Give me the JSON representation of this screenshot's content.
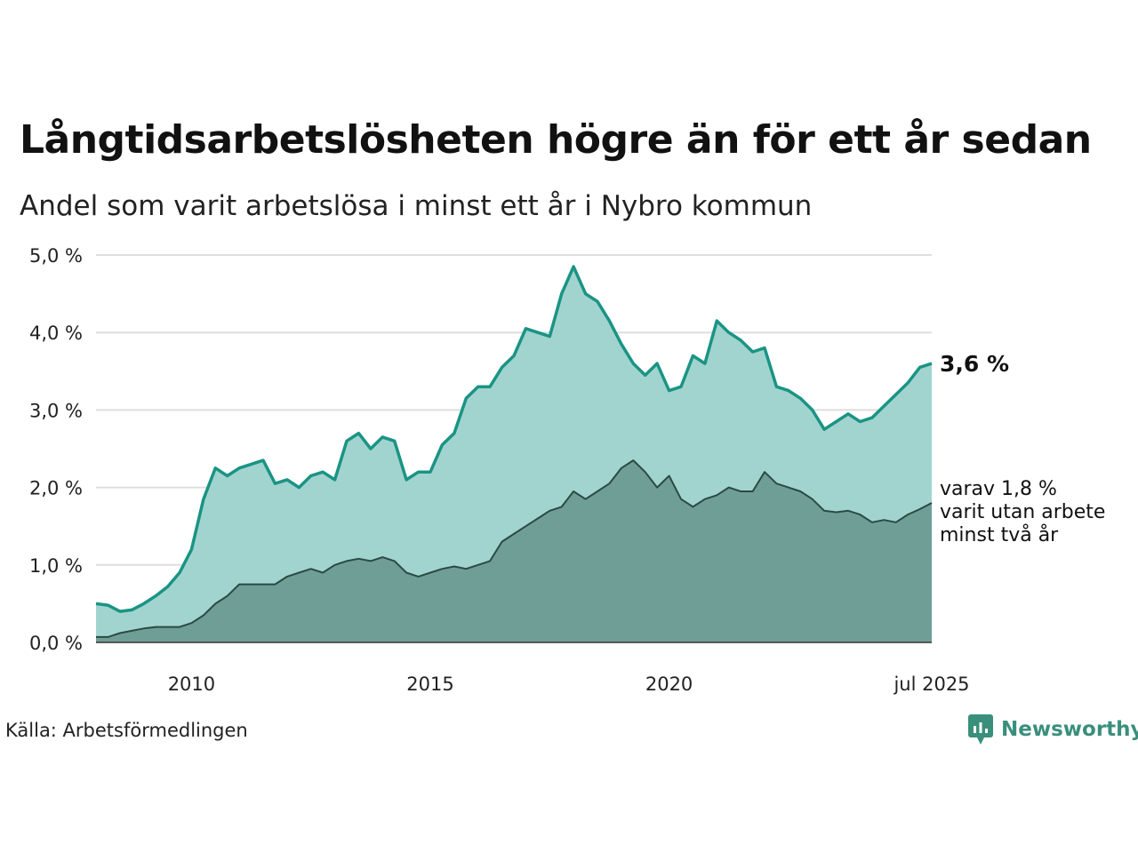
{
  "title": "Långtidsarbetslösheten högre än för ett år sedan",
  "subtitle": "Andel som varit arbetslösa i minst ett år i Nybro kommun",
  "source": "Källa: Arbetsförmedlingen",
  "brand": {
    "name": "Newsworthy",
    "icon": "newsworthy-logo-icon"
  },
  "colors": {
    "line_main": "#1a9484",
    "area_main": "#a2d4cf",
    "line_sub": "#2b4a44",
    "area_sub": "#6f9e97",
    "grid": "#dedede"
  },
  "chart_data": {
    "type": "area",
    "ylim": [
      0,
      5
    ],
    "y_ticks": [
      "0,0 %",
      "1,0 %",
      "2,0 %",
      "3,0 %",
      "4,0 %",
      "5,0 %"
    ],
    "x_ticks": [
      "2010",
      "2015",
      "2020",
      "jul 2025"
    ],
    "grid": true,
    "end_label": "3,6 %",
    "sub_label_lines": [
      "varav 1,8 %",
      "varit utan arbete",
      "minst två år"
    ],
    "series": [
      {
        "x": [
          2008.0,
          2008.25,
          2008.5,
          2008.75,
          2009.0,
          2009.25,
          2009.5,
          2009.75,
          2010.0,
          2010.25,
          2010.5,
          2010.75,
          2011.0,
          2011.25,
          2011.5,
          2011.75,
          2012.0,
          2012.25,
          2012.5,
          2012.75,
          2013.0,
          2013.25,
          2013.5,
          2013.75,
          2014.0,
          2014.25,
          2014.5,
          2014.75,
          2015.0,
          2015.25,
          2015.5,
          2015.75,
          2016.0,
          2016.25,
          2016.5,
          2016.75,
          2017.0,
          2017.25,
          2017.5,
          2017.75,
          2018.0,
          2018.25,
          2018.5,
          2018.75,
          2019.0,
          2019.25,
          2019.5,
          2019.75,
          2020.0,
          2020.25,
          2020.5,
          2020.75,
          2021.0,
          2021.25,
          2021.5,
          2021.75,
          2022.0,
          2022.25,
          2022.5,
          2022.75,
          2023.0,
          2023.25,
          2023.5,
          2023.75,
          2024.0,
          2024.25,
          2024.5,
          2024.75,
          2025.0,
          2025.25,
          2025.5
        ],
        "values": [
          0.5,
          0.48,
          0.4,
          0.42,
          0.5,
          0.6,
          0.72,
          0.9,
          1.2,
          1.85,
          2.25,
          2.15,
          2.25,
          2.3,
          2.35,
          2.05,
          2.1,
          2.0,
          2.15,
          2.2,
          2.1,
          2.6,
          2.7,
          2.5,
          2.65,
          2.6,
          2.1,
          2.2,
          2.2,
          2.55,
          2.7,
          3.15,
          3.3,
          3.3,
          3.55,
          3.7,
          4.05,
          4.0,
          3.95,
          4.5,
          4.85,
          4.5,
          4.4,
          4.15,
          3.85,
          3.6,
          3.45,
          3.6,
          3.25,
          3.3,
          3.7,
          3.6,
          4.15,
          4.0,
          3.9,
          3.75,
          3.8,
          3.3,
          3.25,
          3.15,
          3.0,
          2.75,
          2.85,
          2.95,
          2.85,
          2.9,
          3.05,
          3.2,
          3.35,
          3.55,
          3.6
        ]
      },
      {
        "x": [
          2008.0,
          2008.25,
          2008.5,
          2008.75,
          2009.0,
          2009.25,
          2009.5,
          2009.75,
          2010.0,
          2010.25,
          2010.5,
          2010.75,
          2011.0,
          2011.25,
          2011.5,
          2011.75,
          2012.0,
          2012.25,
          2012.5,
          2012.75,
          2013.0,
          2013.25,
          2013.5,
          2013.75,
          2014.0,
          2014.25,
          2014.5,
          2014.75,
          2015.0,
          2015.25,
          2015.5,
          2015.75,
          2016.0,
          2016.25,
          2016.5,
          2016.75,
          2017.0,
          2017.25,
          2017.5,
          2017.75,
          2018.0,
          2018.25,
          2018.5,
          2018.75,
          2019.0,
          2019.25,
          2019.5,
          2019.75,
          2020.0,
          2020.25,
          2020.5,
          2020.75,
          2021.0,
          2021.25,
          2021.5,
          2021.75,
          2022.0,
          2022.25,
          2022.5,
          2022.75,
          2023.0,
          2023.25,
          2023.5,
          2023.75,
          2024.0,
          2024.25,
          2024.5,
          2024.75,
          2025.0,
          2025.25,
          2025.5
        ],
        "values": [
          0.07,
          0.07,
          0.12,
          0.15,
          0.18,
          0.2,
          0.2,
          0.2,
          0.25,
          0.35,
          0.5,
          0.6,
          0.75,
          0.75,
          0.75,
          0.75,
          0.85,
          0.9,
          0.95,
          0.9,
          1.0,
          1.05,
          1.08,
          1.05,
          1.1,
          1.05,
          0.9,
          0.85,
          0.9,
          0.95,
          0.98,
          0.95,
          1.0,
          1.05,
          1.3,
          1.4,
          1.5,
          1.6,
          1.7,
          1.75,
          1.95,
          1.85,
          1.95,
          2.05,
          2.25,
          2.35,
          2.2,
          2.0,
          2.15,
          1.85,
          1.75,
          1.85,
          1.9,
          2.0,
          1.95,
          1.95,
          2.2,
          2.05,
          2.0,
          1.95,
          1.85,
          1.7,
          1.68,
          1.7,
          1.65,
          1.55,
          1.58,
          1.55,
          1.65,
          1.72,
          1.8
        ]
      }
    ]
  }
}
